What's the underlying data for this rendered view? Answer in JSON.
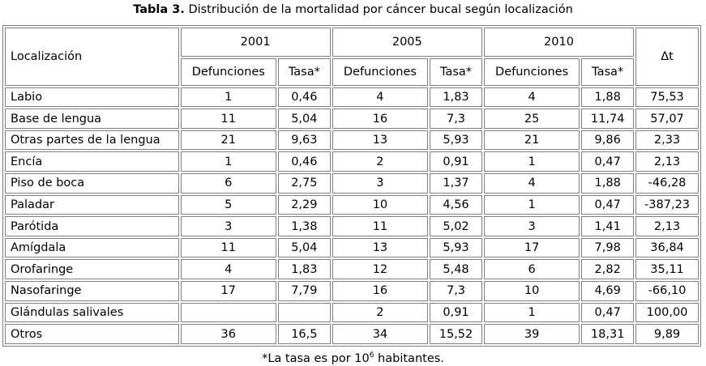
{
  "caption": {
    "label": "Tabla 3.",
    "text": "Distribución de la mortalidad por cáncer bucal según localización"
  },
  "table": {
    "header": {
      "localizacion": "Localización",
      "years": [
        "2001",
        "2005",
        "2010"
      ],
      "defunciones": "Defunciones",
      "tasa": "Tasa*",
      "delta": "Δt"
    },
    "rows": [
      {
        "loc": "Labio",
        "d2001": "1",
        "t2001": "0,46",
        "d2005": "4",
        "t2005": "1,83",
        "d2010": "4",
        "t2010": "1,88",
        "dt": "75,53"
      },
      {
        "loc": "Base de lengua",
        "d2001": "11",
        "t2001": "5,04",
        "d2005": "16",
        "t2005": "7,3",
        "d2010": "25",
        "t2010": "11,74",
        "dt": "57,07"
      },
      {
        "loc": "Otras partes de la lengua",
        "d2001": "21",
        "t2001": "9,63",
        "d2005": "13",
        "t2005": "5,93",
        "d2010": "21",
        "t2010": "9,86",
        "dt": "2,33"
      },
      {
        "loc": "Encía",
        "d2001": "1",
        "t2001": "0,46",
        "d2005": "2",
        "t2005": "0,91",
        "d2010": "1",
        "t2010": "0,47",
        "dt": "2,13"
      },
      {
        "loc": "Piso de boca",
        "d2001": "6",
        "t2001": "2,75",
        "d2005": "3",
        "t2005": "1,37",
        "d2010": "4",
        "t2010": "1,88",
        "dt": "-46,28"
      },
      {
        "loc": "Paladar",
        "d2001": "5",
        "t2001": "2,29",
        "d2005": "10",
        "t2005": "4,56",
        "d2010": "1",
        "t2010": "0,47",
        "dt": "-387,23"
      },
      {
        "loc": "Parótida",
        "d2001": "3",
        "t2001": "1,38",
        "d2005": "11",
        "t2005": "5,02",
        "d2010": "3",
        "t2010": "1,41",
        "dt": "2,13"
      },
      {
        "loc": "Amígdala",
        "d2001": "11",
        "t2001": "5,04",
        "d2005": "13",
        "t2005": "5,93",
        "d2010": "17",
        "t2010": "7,98",
        "dt": "36,84"
      },
      {
        "loc": "Orofaringe",
        "d2001": "4",
        "t2001": "1,83",
        "d2005": "12",
        "t2005": "5,48",
        "d2010": "6",
        "t2010": "2,82",
        "dt": "35,11"
      },
      {
        "loc": "Nasofaringe",
        "d2001": "17",
        "t2001": "7,79",
        "d2005": "16",
        "t2005": "7,3",
        "d2010": "10",
        "t2010": "4,69",
        "dt": "-66,10"
      },
      {
        "loc": "Glándulas salivales",
        "d2001": "",
        "t2001": "",
        "d2005": "2",
        "t2005": "0,91",
        "d2010": "1",
        "t2010": "0,47",
        "dt": "100,00"
      },
      {
        "loc": "Otros",
        "d2001": "36",
        "t2001": "16,5",
        "d2005": "34",
        "t2005": "15,52",
        "d2010": "39",
        "t2010": "18,31",
        "dt": "9,89"
      }
    ]
  },
  "footnote": {
    "prefix": "*La tasa es por 10",
    "exponent": "6",
    "suffix": " habitantes."
  }
}
